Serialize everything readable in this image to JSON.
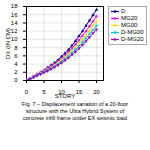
{
  "chart_data": {
    "type": "line",
    "xlabel": "STORY",
    "ylabel": "DX (IN CM)",
    "caption": "Fig. 7 – Displacement variation of a 20-floor\n structure with the Ultra Hybrid System of\nconcrete infill frame under EX seismic load",
    "xlim": [
      0,
      22
    ],
    "ylim": [
      0,
      18
    ],
    "xticks": [
      0,
      5,
      10,
      15,
      20
    ],
    "yticks": [
      0,
      2,
      4,
      6,
      8,
      10,
      12,
      14,
      16,
      18
    ],
    "grid": true,
    "legend": "right",
    "x": [
      0,
      1,
      2,
      3,
      4,
      5,
      6,
      7,
      8,
      9,
      10,
      11,
      12,
      13,
      14,
      15,
      16,
      17,
      18,
      19,
      20
    ],
    "series": [
      {
        "name": "D",
        "color": "#000099",
        "marker": "triangle",
        "values": [
          0,
          0.5,
          1.0,
          1.5,
          2.0,
          2.5,
          3.1,
          3.7,
          4.3,
          5.0,
          5.8,
          6.6,
          7.5,
          8.5,
          9.6,
          10.8,
          12.0,
          13.3,
          14.6,
          15.9,
          17.2
        ]
      },
      {
        "name": "MG20",
        "color": "#FF00FF",
        "marker": "square",
        "values": [
          0,
          0.47,
          0.95,
          1.43,
          1.9,
          2.38,
          2.9,
          3.45,
          4.0,
          4.65,
          5.35,
          6.1,
          6.9,
          7.8,
          8.75,
          9.8,
          10.9,
          12.0,
          13.2,
          14.4,
          15.6
        ]
      },
      {
        "name": "MG00",
        "color": "#FFDD00",
        "marker": "diamond",
        "values": [
          0,
          0.44,
          0.88,
          1.32,
          1.77,
          2.22,
          2.7,
          3.2,
          3.75,
          4.35,
          5.0,
          5.7,
          6.45,
          7.25,
          8.1,
          9.05,
          10.05,
          11.1,
          12.2,
          13.3,
          14.4
        ]
      },
      {
        "name": "D-MG00",
        "color": "#00CCCC",
        "marker": "circle",
        "values": [
          0,
          0.41,
          0.82,
          1.23,
          1.65,
          2.07,
          2.51,
          2.97,
          3.47,
          4.02,
          4.62,
          5.27,
          5.97,
          6.72,
          7.52,
          8.4,
          9.33,
          10.3,
          11.3,
          12.3,
          13.3
        ]
      },
      {
        "name": "D-MG20",
        "color": "#9900CC",
        "marker": "triangle-down",
        "values": [
          0,
          0.38,
          0.76,
          1.15,
          1.54,
          1.93,
          2.34,
          2.77,
          3.23,
          3.74,
          4.3,
          4.9,
          5.55,
          6.25,
          6.99,
          7.8,
          8.66,
          9.57,
          10.5,
          11.5,
          12.4
        ]
      }
    ]
  }
}
